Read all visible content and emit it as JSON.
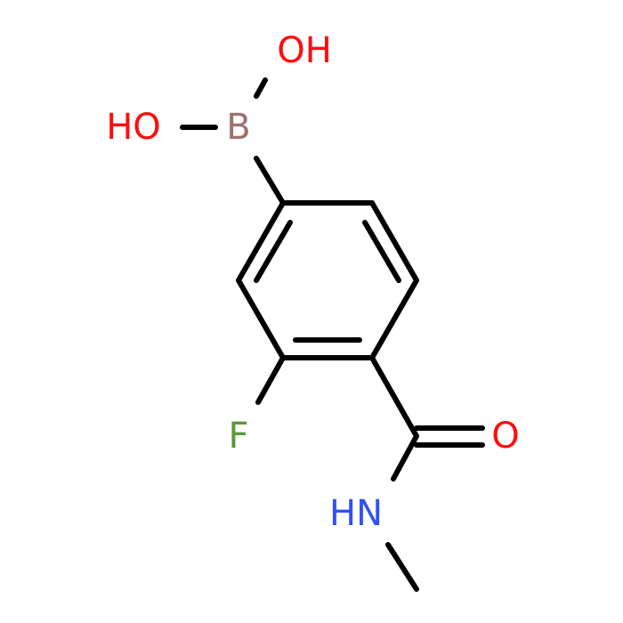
{
  "atoms": {
    "hydroxyl_top": "OH",
    "hydroxyl_left": "HO",
    "boron": "B",
    "fluorine": "F",
    "carbonyl_oxygen": "O",
    "amide_nitrogen": "HN"
  }
}
